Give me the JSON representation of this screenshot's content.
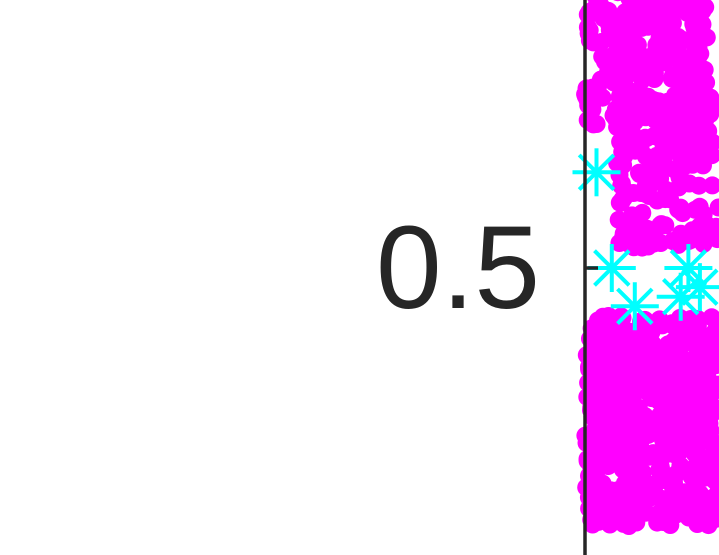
{
  "chart_data": {
    "type": "scatter",
    "title": "",
    "xlabel": "",
    "ylabel": "",
    "view": {
      "x_range": [
        0.0,
        0.35
      ],
      "y_range": [
        0.23,
        0.81
      ]
    },
    "y_ticks": [
      {
        "value": 0.5,
        "label": "0.5"
      }
    ],
    "grid": false,
    "legend": "none",
    "series": [
      {
        "marker": "circle",
        "color": "#ff00ff",
        "clusters": [
          {
            "x": [
              0.0,
              0.32
            ],
            "y": [
              0.65,
              0.82
            ],
            "count": 260,
            "seed": 11
          },
          {
            "x": [
              0.08,
              0.35
            ],
            "y": [
              0.52,
              0.68
            ],
            "count": 180,
            "seed": 23
          },
          {
            "x": [
              0.0,
              0.35
            ],
            "y": [
              0.23,
              0.45
            ],
            "count": 520,
            "seed": 37
          }
        ]
      },
      {
        "marker": "asterisk",
        "color": "#00ffff",
        "points": [
          {
            "x": 0.03,
            "y": 0.6
          },
          {
            "x": 0.07,
            "y": 0.5
          },
          {
            "x": 0.13,
            "y": 0.46
          },
          {
            "x": 0.25,
            "y": 0.47
          },
          {
            "x": 0.27,
            "y": 0.5
          },
          {
            "x": 0.3,
            "y": 0.48
          }
        ]
      }
    ]
  }
}
